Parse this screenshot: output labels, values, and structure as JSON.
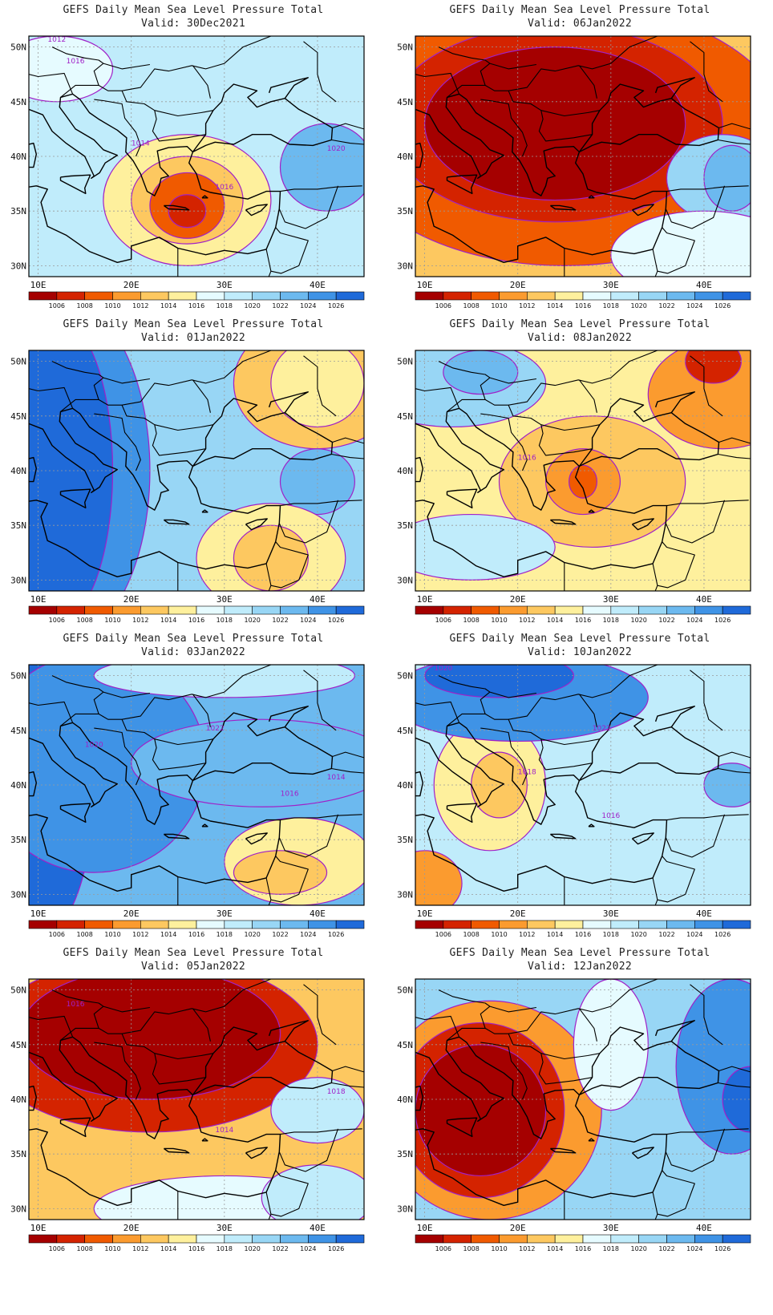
{
  "common": {
    "title": "GEFS Daily Mean Sea Level Pressure Total",
    "valid_prefix": "Valid:",
    "lon_labels": [
      "10E",
      "20E",
      "30E",
      "40E"
    ],
    "lat_labels": [
      "50N",
      "45N",
      "40N",
      "35N",
      "30N"
    ],
    "colorbar_labels": [
      "1006",
      "1008",
      "1010",
      "1012",
      "1014",
      "1016",
      "1018",
      "1020",
      "1022",
      "1024",
      "1026"
    ],
    "colorbar_colors": [
      "#a50000",
      "#d42300",
      "#f05a00",
      "#fb9b2f",
      "#fdc860",
      "#fef09d",
      "#e6fbff",
      "#c0ecfb",
      "#98d6f5",
      "#6cb9ef",
      "#3f93e6",
      "#1f6ad9"
    ],
    "contour_color": "#a020c8",
    "coast_color": "#000000"
  },
  "panels": [
    {
      "valid": "30Dec2021",
      "col": 0,
      "row": 0,
      "bg": 7,
      "labels": [
        "1012",
        "1014",
        "1016",
        "1016",
        "1020"
      ],
      "blobs": [
        [
          26,
          36,
          9,
          6,
          5
        ],
        [
          26,
          36,
          6,
          4,
          4
        ],
        [
          26,
          35.5,
          4,
          3,
          2
        ],
        [
          26,
          35,
          2,
          1.5,
          1
        ],
        [
          41,
          39,
          5,
          4,
          9
        ],
        [
          12,
          48,
          6,
          3,
          6
        ]
      ]
    },
    {
      "valid": "06Jan2022",
      "col": 1,
      "row": 0,
      "bg": 4,
      "labels": [],
      "blobs": [
        [
          25,
          42,
          24,
          12,
          2
        ],
        [
          24,
          43,
          18,
          9,
          1
        ],
        [
          24,
          43,
          14,
          7,
          0
        ],
        [
          42,
          38,
          6,
          4,
          8
        ],
        [
          43,
          38,
          3,
          3,
          9
        ],
        [
          40,
          31,
          10,
          4,
          6
        ]
      ]
    },
    {
      "valid": "01Jan2022",
      "col": 0,
      "row": 1,
      "bg": 8,
      "labels": [],
      "blobs": [
        [
          12,
          40,
          10,
          16,
          10
        ],
        [
          12,
          40,
          6,
          14,
          11
        ],
        [
          40,
          48,
          9,
          6,
          4
        ],
        [
          40,
          48,
          5,
          4,
          5
        ],
        [
          40,
          39,
          4,
          3,
          9
        ],
        [
          35,
          32,
          8,
          5,
          5
        ],
        [
          35,
          32,
          4,
          3,
          4
        ]
      ]
    },
    {
      "valid": "08Jan2022",
      "col": 1,
      "row": 1,
      "bg": 5,
      "labels": [
        "1016"
      ],
      "blobs": [
        [
          28,
          39,
          10,
          6,
          4
        ],
        [
          27,
          39,
          4,
          3,
          3
        ],
        [
          27,
          39,
          1.5,
          1.5,
          2
        ],
        [
          42,
          47,
          8,
          5,
          3
        ],
        [
          41,
          50,
          3,
          2,
          1
        ],
        [
          13,
          48,
          10,
          4,
          8
        ],
        [
          16,
          49,
          4,
          2,
          9
        ],
        [
          15,
          33,
          9,
          3,
          7
        ]
      ]
    },
    {
      "valid": "03Jan2022",
      "col": 0,
      "row": 2,
      "bg": 9,
      "labels": [
        "1014",
        "1016",
        "1020",
        "1022"
      ],
      "blobs": [
        [
          10,
          40,
          6,
          14,
          11
        ],
        [
          16,
          42,
          12,
          10,
          10
        ],
        [
          34,
          42,
          14,
          4,
          9
        ],
        [
          38,
          33,
          8,
          4,
          5
        ],
        [
          36,
          32,
          5,
          2,
          4
        ],
        [
          30,
          50,
          14,
          2,
          7
        ]
      ]
    },
    {
      "valid": "10Jan2022",
      "col": 1,
      "row": 2,
      "bg": 7,
      "labels": [
        "1022",
        "1020",
        "1018",
        "1016"
      ],
      "blobs": [
        [
          17,
          40,
          6,
          6,
          5
        ],
        [
          18,
          40,
          3,
          3,
          4
        ],
        [
          10,
          31,
          4,
          3,
          3
        ],
        [
          20,
          48,
          14,
          4,
          10
        ],
        [
          18,
          50,
          8,
          2,
          11
        ],
        [
          43,
          40,
          3,
          2,
          9
        ]
      ]
    },
    {
      "valid": "05Jan2022",
      "col": 0,
      "row": 3,
      "bg": 4,
      "labels": [
        "1014",
        "1016",
        "1018"
      ],
      "blobs": [
        [
          22,
          45,
          18,
          8,
          1
        ],
        [
          22,
          46,
          14,
          6,
          0
        ],
        [
          40,
          39,
          5,
          3,
          7
        ],
        [
          30,
          30,
          14,
          3,
          6
        ],
        [
          40,
          31,
          6,
          3,
          7
        ]
      ]
    },
    {
      "valid": "12Jan2022",
      "col": 1,
      "row": 3,
      "bg": 8,
      "labels": [],
      "blobs": [
        [
          17,
          39,
          12,
          10,
          3
        ],
        [
          16,
          39,
          9,
          8,
          1
        ],
        [
          16,
          39,
          7,
          6,
          0
        ],
        [
          30,
          45,
          4,
          6,
          6
        ],
        [
          43,
          43,
          6,
          8,
          10
        ],
        [
          45,
          40,
          3,
          3,
          11
        ]
      ]
    }
  ]
}
